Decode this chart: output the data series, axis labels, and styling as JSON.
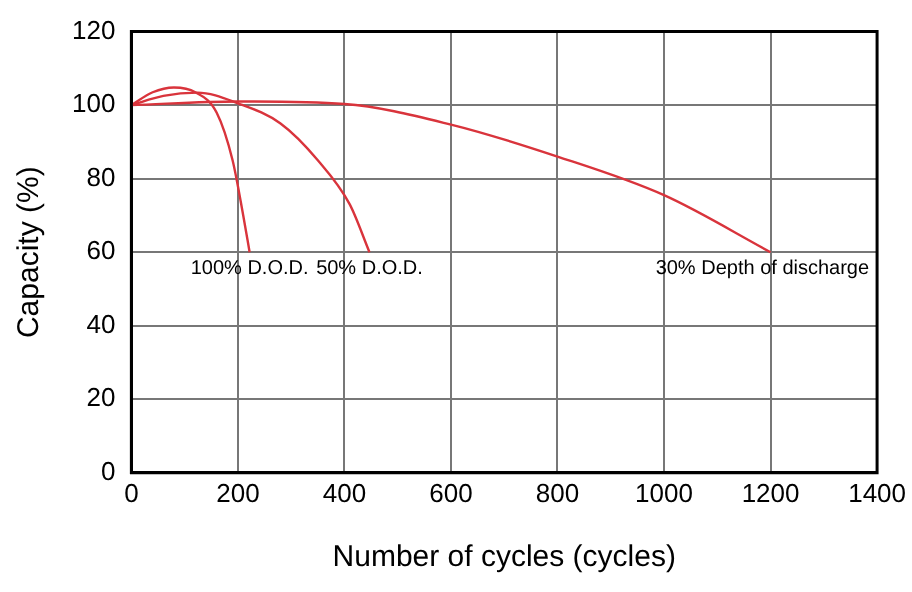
{
  "chart_data": {
    "type": "line",
    "xlabel": "Number of cycles (cycles)",
    "ylabel": "Capacity (%)",
    "xlim": [
      0,
      1400
    ],
    "xticks": [
      0,
      200,
      400,
      600,
      800,
      1000,
      1200,
      1400
    ],
    "ylim": [
      0,
      120
    ],
    "yticks": [
      0,
      20,
      40,
      60,
      80,
      100,
      120
    ],
    "grid": true,
    "marker": "none",
    "series": [
      {
        "name": "100% D.O.D.",
        "color": "#d9343c",
        "x": [
          0,
          40,
          80,
          120,
          160,
          190,
          210,
          222
        ],
        "values": [
          100,
          103.5,
          104.8,
          103.5,
          98,
          85,
          70,
          60
        ]
      },
      {
        "name": "50% D.O.D.",
        "color": "#d9343c",
        "x": [
          0,
          60,
          124,
          200,
          280,
          350,
          410,
          447
        ],
        "values": [
          100,
          102.5,
          103.4,
          100.5,
          95,
          85,
          73,
          60
        ]
      },
      {
        "name": "30% Depth of discharge",
        "color": "#d9343c",
        "x": [
          0,
          200,
          400,
          600,
          800,
          1000,
          1200
        ],
        "values": [
          100,
          101,
          100.3,
          94.7,
          86,
          75.5,
          60
        ]
      }
    ]
  }
}
